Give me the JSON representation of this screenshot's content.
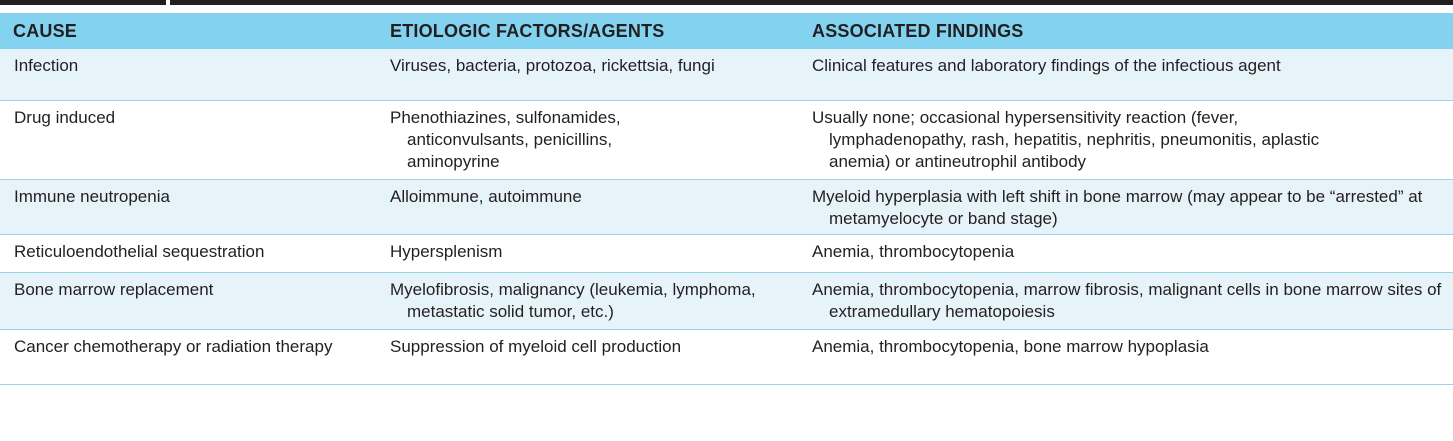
{
  "table": {
    "headers": [
      "CAUSE",
      "ETIOLOGIC FACTORS/AGENTS",
      "ASSOCIATED FINDINGS"
    ],
    "rows": [
      {
        "cause": "Infection",
        "factors": "Viruses, bacteria, protozoa, rickettsia, fungi",
        "findings": "Clinical features and laboratory findings of the infectious agent"
      },
      {
        "cause": "Drug induced",
        "factors": "Phenothiazines, sulfonamides, anticonvulsants, penicillins, aminopyrine",
        "findings": "Usually none; occasional hypersensitivity reaction (fever, lymphadenopathy, rash, hepatitis, nephritis, pneumonitis, aplastic anemia) or antineutrophil antibody"
      },
      {
        "cause": "Immune neutropenia",
        "factors": "Alloimmune, autoimmune",
        "findings": "Myeloid hyperplasia with left shift in bone marrow (may appear to be “arrested” at metamyelocyte or band stage)"
      },
      {
        "cause": "Reticuloendothelial sequestration",
        "factors": "Hypersplenism",
        "findings": "Anemia, thrombocytopenia"
      },
      {
        "cause": "Bone marrow replacement",
        "factors": "Myelofibrosis, malignancy (leukemia, lymphoma, metastatic solid tumor, etc.)",
        "findings": "Anemia, thrombocytopenia, marrow fibrosis, malignant cells in bone marrow sites of extramedullary hematopoiesis"
      },
      {
        "cause": "Cancer chemotherapy or radiation therapy",
        "factors": "Suppression of myeloid cell production",
        "findings": "Anemia, thrombocytopenia, bone marrow hypoplasia"
      }
    ]
  },
  "colors": {
    "header_background": "#82d2f0",
    "stripe_background": "#e6f4fa",
    "rule": "#231f20",
    "text": "#231f20"
  }
}
